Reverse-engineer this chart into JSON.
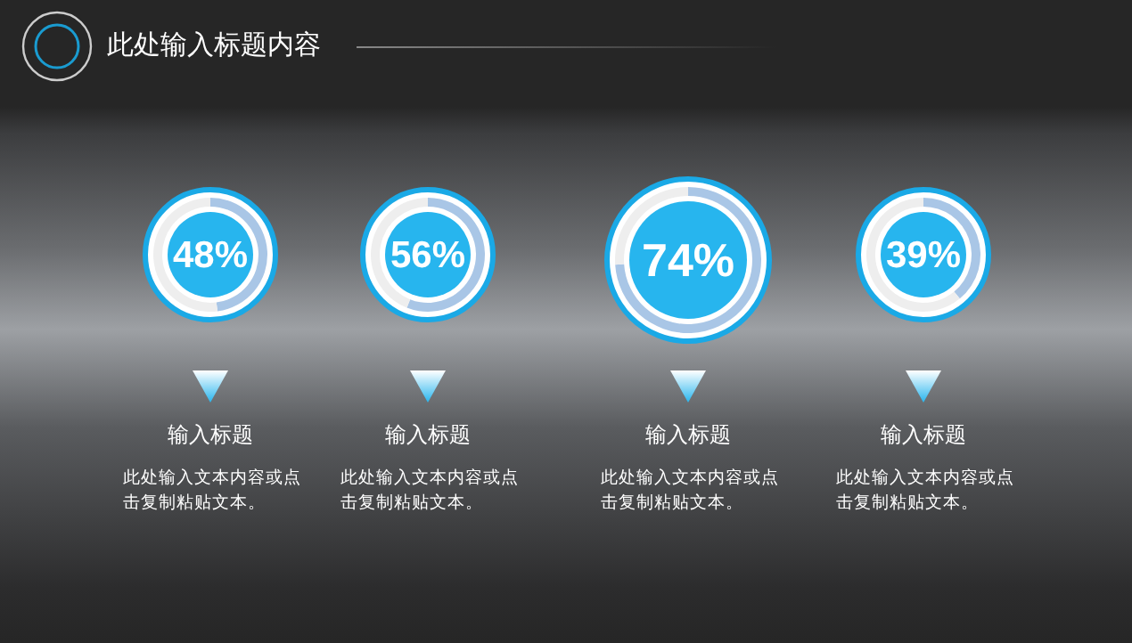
{
  "chart_data": [
    {
      "type": "other",
      "title": "此处输入标题内容"
    },
    {
      "type": "donut",
      "title": "输入标题",
      "categories": [
        null,
        null
      ],
      "values": [
        48,
        52
      ],
      "colors": [
        "#a9c6e6",
        "#eeeeee"
      ],
      "annotations": [
        "48%",
        "此处输入文本内容或点击复制粘贴文本。"
      ]
    },
    {
      "type": "donut",
      "title": "输入标题",
      "categories": [
        null,
        null
      ],
      "values": [
        56,
        44
      ],
      "colors": [
        "#a9c6e6",
        "#eeeeee"
      ],
      "annotations": [
        "56%",
        "此处输入文本内容或点击复制粘贴文本。"
      ]
    },
    {
      "type": "donut",
      "title": "输入标题",
      "categories": [
        null,
        null
      ],
      "values": [
        74,
        26
      ],
      "colors": [
        "#a9c6e6",
        "#eeeeee"
      ],
      "annotations": [
        "74%",
        "此处输入文本内容或点击复制粘贴文本。"
      ]
    },
    {
      "type": "donut",
      "title": "输入标题",
      "categories": [
        null,
        null
      ],
      "values": [
        39,
        61
      ],
      "colors": [
        "#a9c6e6",
        "#eeeeee"
      ],
      "annotations": [
        "39%",
        "此处输入文本内容或点击复制粘贴文本。"
      ]
    }
  ]
}
